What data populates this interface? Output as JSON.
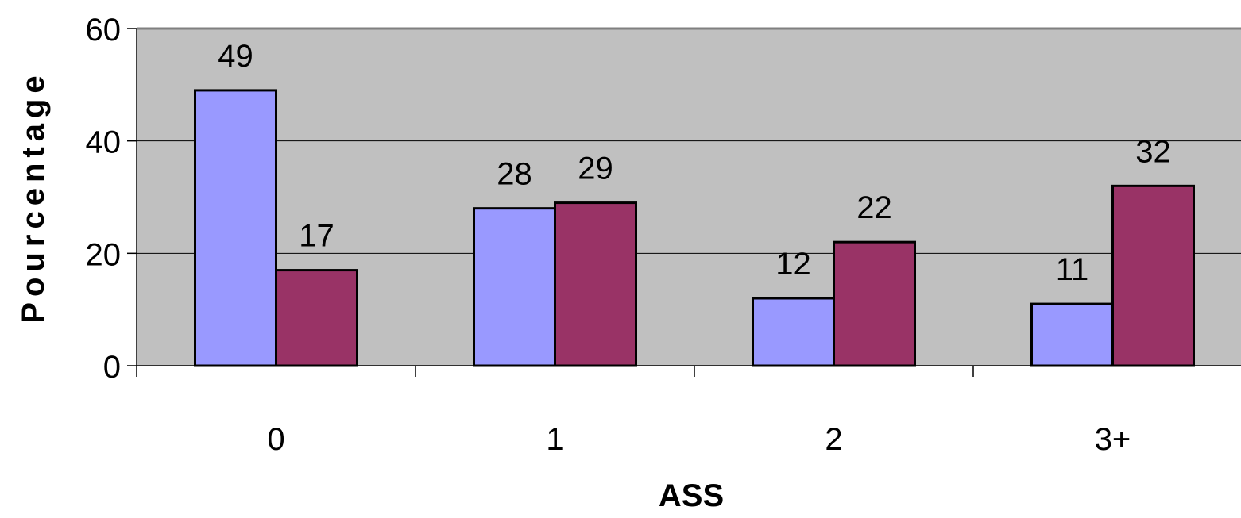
{
  "chart_data": {
    "type": "bar",
    "title": "",
    "xlabel": "ASS",
    "ylabel": "Pourcentage",
    "categories": [
      "0",
      "1",
      "2",
      "3+"
    ],
    "series": [
      {
        "values": [
          49,
          28,
          12,
          11
        ],
        "color": "#9999ff"
      },
      {
        "values": [
          17,
          29,
          22,
          32
        ],
        "color": "#993366"
      }
    ],
    "ylim": [
      0,
      60
    ],
    "yticks": [
      0,
      20,
      40,
      60
    ],
    "grid": true,
    "legend": "none",
    "plot_background": "#c0c0c0"
  }
}
